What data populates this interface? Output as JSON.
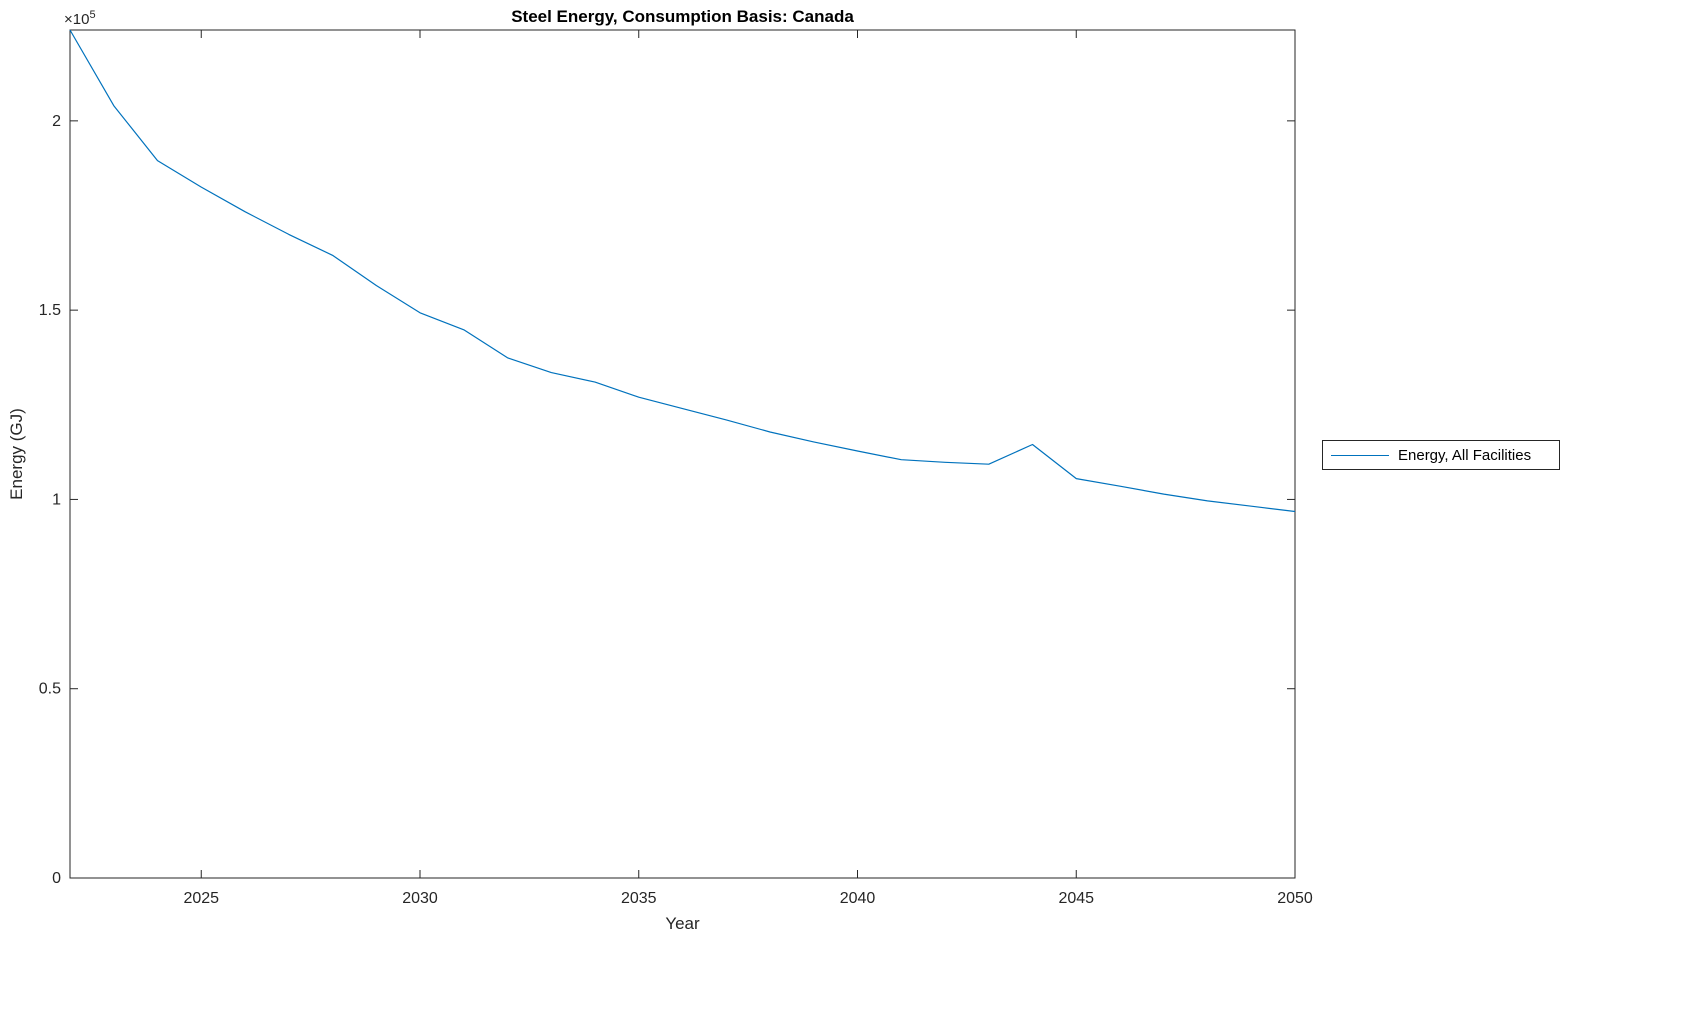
{
  "chart_data": {
    "type": "line",
    "title": "Steel Energy, Consumption Basis: Canada",
    "xlabel": "Year",
    "ylabel": "Energy (GJ)",
    "y_exponent_base": "×10",
    "y_exponent_power": "5",
    "x": [
      2022,
      2023,
      2024,
      2025,
      2026,
      2027,
      2028,
      2029,
      2030,
      2031,
      2032,
      2033,
      2034,
      2035,
      2036,
      2037,
      2038,
      2039,
      2040,
      2041,
      2042,
      2043,
      2044,
      2045,
      2046,
      2047,
      2048,
      2049,
      2050
    ],
    "series": [
      {
        "name": "Energy, All Facilities",
        "color": "#0072BD",
        "values": [
          224000,
          204000,
          189500,
          182500,
          176000,
          170000,
          164500,
          156500,
          149300,
          144800,
          137400,
          133500,
          131000,
          127000,
          124000,
          121000,
          117800,
          115200,
          112800,
          110500,
          109800,
          109300,
          114500,
          105500,
          103500,
          101400,
          99600,
          98200,
          96800
        ]
      }
    ],
    "xlim": [
      2022,
      2050
    ],
    "ylim": [
      0,
      224000
    ],
    "xticks": [
      2025,
      2030,
      2035,
      2040,
      2045,
      2050
    ],
    "xtick_labels": [
      "2025",
      "2030",
      "2035",
      "2040",
      "2045",
      "2050"
    ],
    "yticks": [
      0,
      50000,
      100000,
      150000,
      200000
    ],
    "ytick_labels": [
      "0",
      "0.5",
      "1",
      "1.5",
      "2"
    ],
    "grid": false,
    "legend_position": "right-outside",
    "axis_color": "#262626",
    "line_color": "#0072BD",
    "background_color": "#ffffff"
  }
}
